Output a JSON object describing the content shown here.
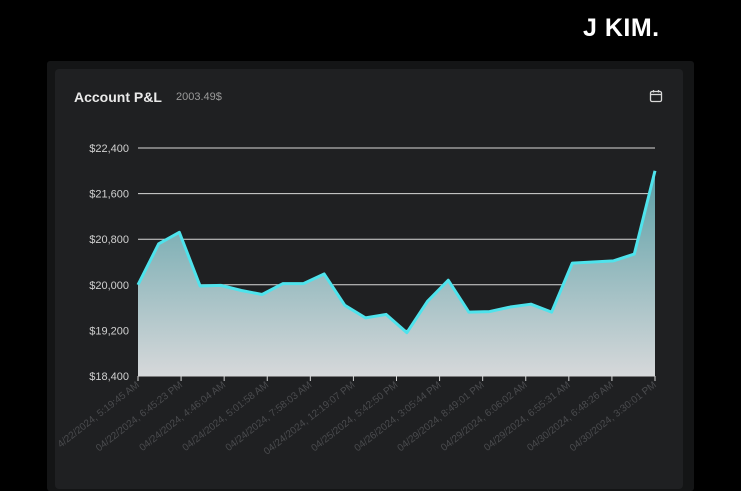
{
  "brand": {
    "name": "J KIM."
  },
  "card": {
    "title": "Account P&L",
    "value": "2003.49$",
    "calendar_icon": "calendar-icon"
  },
  "colors": {
    "line": "#4fe3ec",
    "area_top": "#5a9fa6",
    "area_bottom": "#d6d8da",
    "grid": "#d8d8d8",
    "card_bg": "#1f2022"
  },
  "chart_data": {
    "type": "area",
    "title": "",
    "xlabel": "",
    "ylabel": "",
    "ylim": [
      18400,
      22400
    ],
    "yticks": [
      22400,
      21600,
      20800,
      20000,
      19200,
      18400
    ],
    "ytick_labels": [
      "$22,400",
      "$21,600",
      "$20,800",
      "$20,000",
      "$19,200",
      "$18,400"
    ],
    "xtick_labels": [
      "4/22/2024, 5:19:45 AM",
      "04/22/2024, 6:45:23 PM",
      "04/24/2024, 4:46:04 AM",
      "04/24/2024, 5:01:58 AM",
      "04/24/2024, 7:58:03 AM",
      "04/24/2024, 12:19:07 PM",
      "04/25/2024, 5:42:50 PM",
      "04/26/2024, 3:05:44 PM",
      "04/29/2024, 8:49:01 PM",
      "04/29/2024, 6:06:02 AM",
      "04/29/2024, 6:55:31 AM",
      "04/30/2024, 6:48:26 AM",
      "04/30/2024, 3:30:01 PM"
    ],
    "series": [
      {
        "values": [
          20000,
          20720,
          20920,
          19980,
          19990,
          19900,
          19830,
          20020,
          20020,
          20190,
          19640,
          19420,
          19480,
          19160,
          19710,
          20080,
          19520,
          19530,
          19610,
          19660,
          19520,
          20380,
          20400,
          20420,
          20540,
          22000
        ]
      }
    ]
  }
}
